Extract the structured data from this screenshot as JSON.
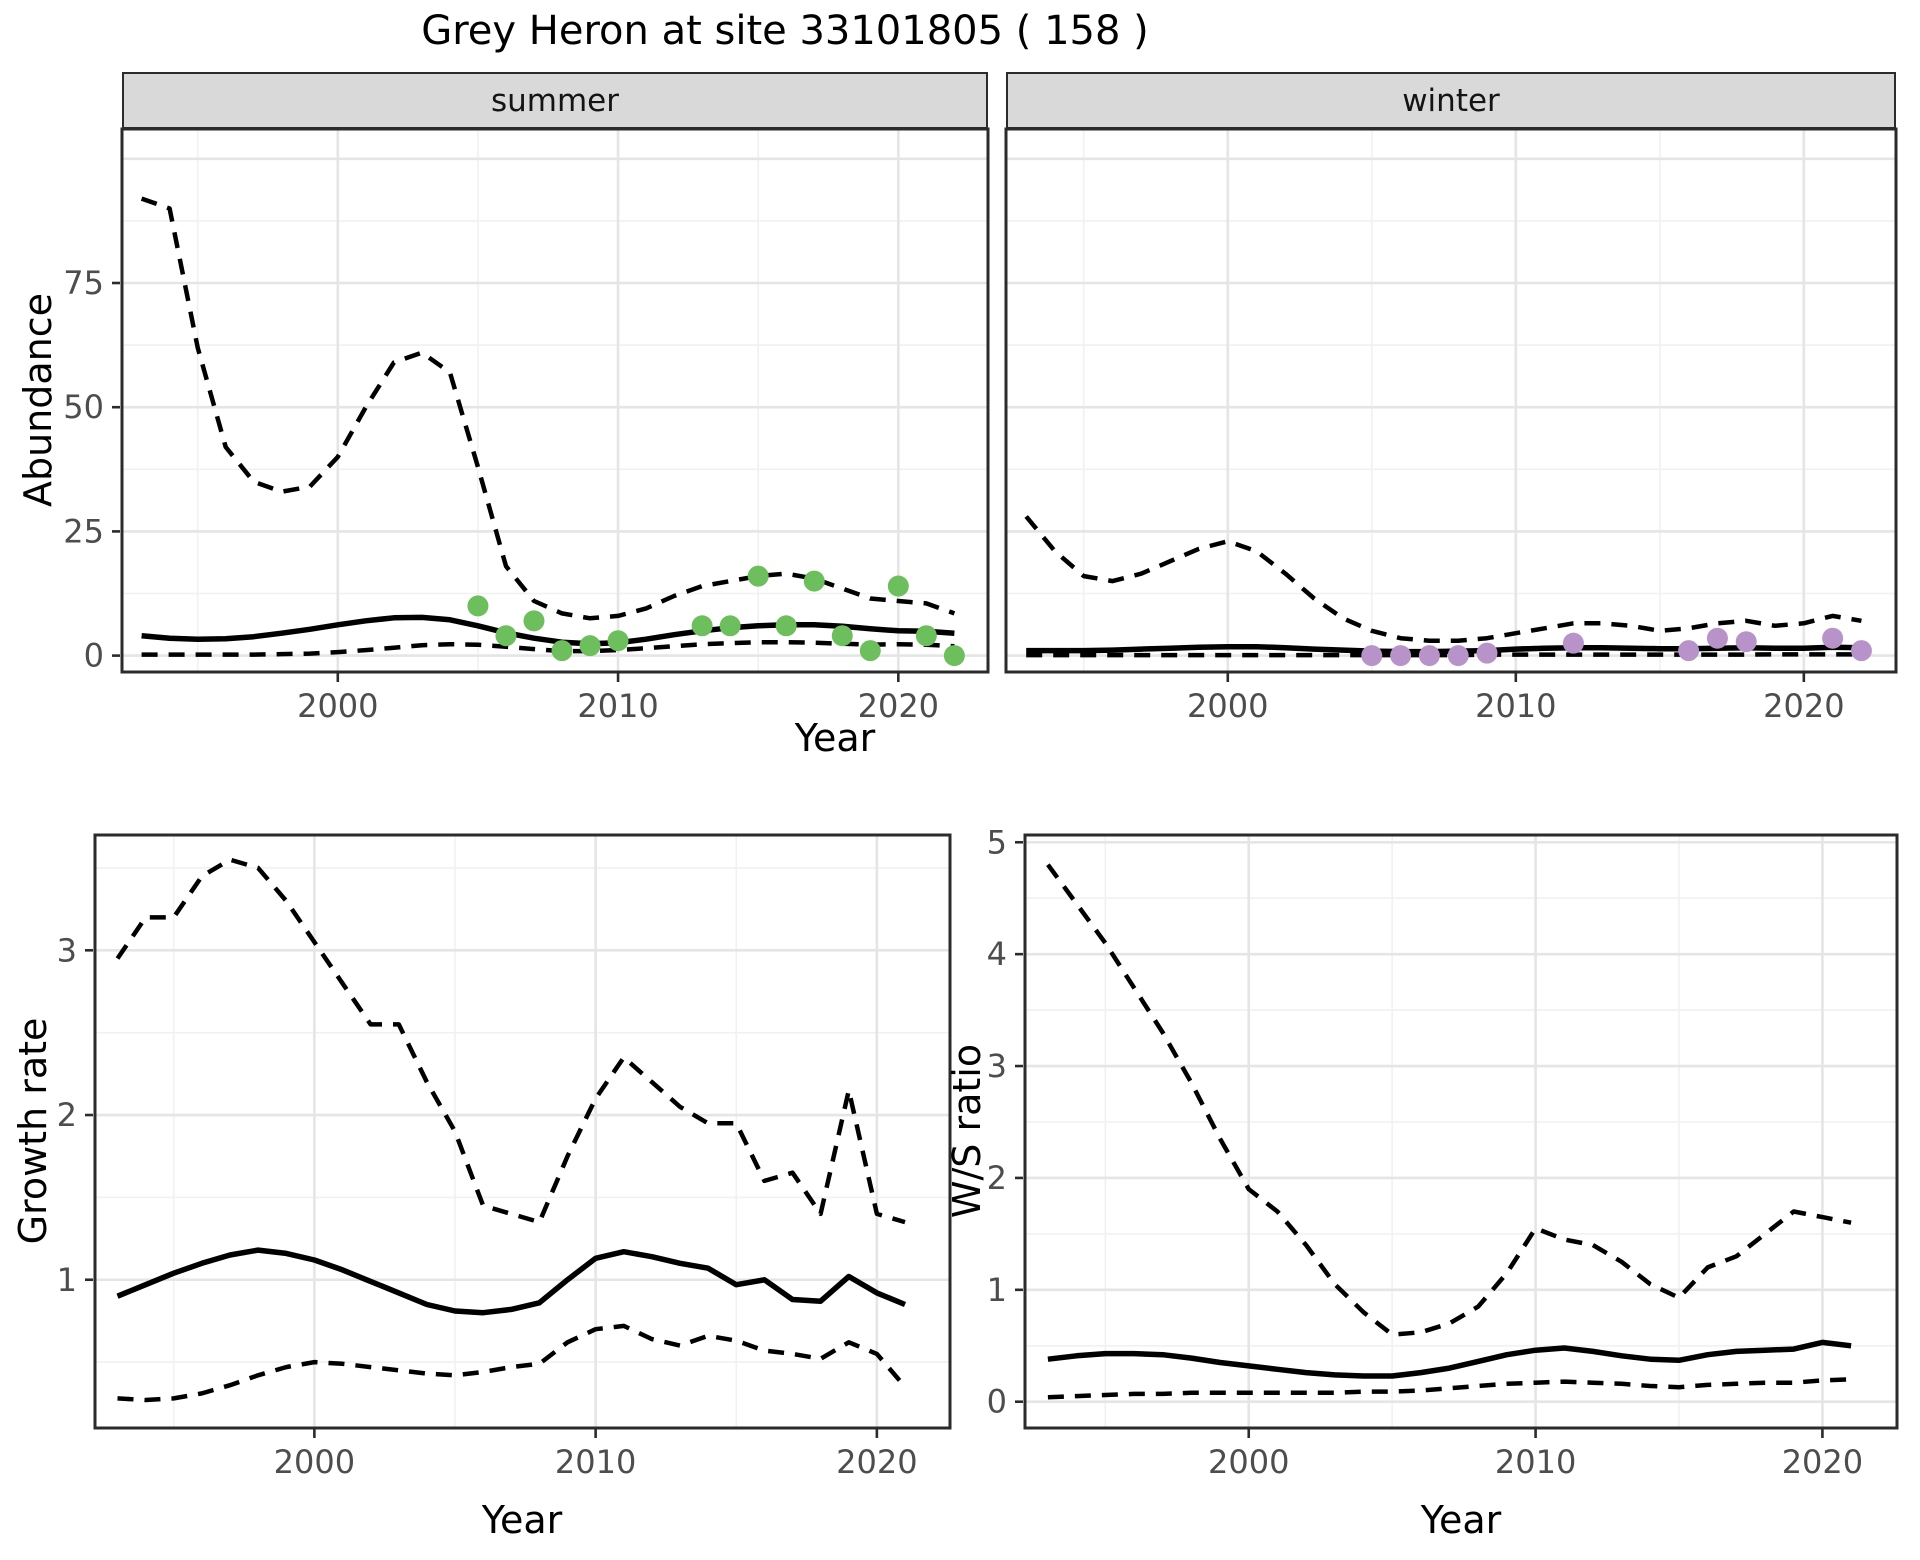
{
  "title": "Grey Heron at site 33101805 ( 158 )",
  "axis": {
    "x_title": "Year",
    "abundance": "Abundance",
    "growth": "Growth rate",
    "ws": "W/S ratio"
  },
  "facets": {
    "summer": "summer",
    "winter": "winter"
  },
  "colors": {
    "summer_point": "#6dbe5c",
    "winter_point": "#b793c9",
    "line": "#000000",
    "strip_bg": "#d9d9d9",
    "panel_border": "#2b2b2b",
    "grid_major": "#e5e5e5",
    "grid_minor": "#f1f1f1",
    "tick_label": "#4d4d4d"
  },
  "chart_data": [
    {
      "id": "summer",
      "type": "line",
      "facet": "summer",
      "xlabel": "Year",
      "ylabel": "Abundance",
      "xlim": [
        1992.3,
        2023.2
      ],
      "ylim": [
        -3.3,
        106
      ],
      "xticks": [
        2000,
        2010,
        2020
      ],
      "xticklabels": [
        "2000",
        "2010",
        "2020"
      ],
      "xticks_minor": [
        1995,
        2005,
        2015
      ],
      "yticks": [
        0,
        25,
        50,
        75
      ],
      "yticklabels": [
        "0",
        "25",
        "50",
        "75"
      ],
      "yticks_grid": [
        0,
        25,
        50,
        75,
        100
      ],
      "yticks_minor": [
        12.5,
        37.5,
        62.5,
        87.5
      ],
      "years": [
        1993,
        1994,
        1995,
        1996,
        1997,
        1998,
        1999,
        2000,
        2001,
        2002,
        2003,
        2004,
        2005,
        2006,
        2007,
        2008,
        2009,
        2010,
        2011,
        2012,
        2013,
        2014,
        2015,
        2016,
        2017,
        2018,
        2019,
        2020,
        2021,
        2022
      ],
      "series": [
        {
          "name": "upper_95ci",
          "style": "dashed",
          "y": [
            92,
            90,
            62,
            42,
            35,
            33,
            34,
            40,
            50,
            59,
            61,
            57,
            38,
            18,
            11,
            8.5,
            7.5,
            8,
            9.5,
            12,
            14,
            15,
            16,
            16.5,
            15.5,
            13.5,
            11.5,
            11,
            10.5,
            8.5
          ]
        },
        {
          "name": "mean",
          "style": "solid",
          "y": [
            4,
            3.5,
            3.3,
            3.4,
            3.8,
            4.5,
            5.3,
            6.2,
            7,
            7.6,
            7.7,
            7.2,
            6,
            4.6,
            3.5,
            2.7,
            2.4,
            2.6,
            3.3,
            4.2,
            5,
            5.6,
            6,
            6.2,
            6.2,
            5.9,
            5.4,
            5,
            4.9,
            4.5
          ]
        },
        {
          "name": "lower_95ci",
          "style": "dashed",
          "y": [
            0.2,
            0.2,
            0.2,
            0.2,
            0.2,
            0.3,
            0.4,
            0.7,
            1.1,
            1.6,
            2.1,
            2.3,
            2.2,
            1.8,
            1.3,
            0.9,
            0.9,
            1.1,
            1.5,
            1.9,
            2.3,
            2.5,
            2.7,
            2.7,
            2.6,
            2.4,
            2.2,
            2.3,
            2.2,
            1.9
          ]
        },
        {
          "name": "observed_counts",
          "style": "points",
          "color": "#6dbe5c",
          "x": [
            2005,
            2006,
            2007,
            2008,
            2009,
            2010,
            2013,
            2014,
            2015,
            2016,
            2017,
            2018,
            2019,
            2020,
            2021,
            2022
          ],
          "y": [
            10,
            4,
            7,
            1,
            2,
            3,
            6,
            6,
            16,
            6,
            15,
            4,
            1,
            14,
            4,
            0
          ]
        }
      ]
    },
    {
      "id": "winter",
      "type": "line",
      "facet": "winter",
      "xlabel": "Year",
      "ylabel": "Abundance",
      "xlim": [
        1992.3,
        2023.2
      ],
      "ylim": [
        -3.3,
        106
      ],
      "xticks": [
        2000,
        2010,
        2020
      ],
      "xticklabels": [
        "2000",
        "2010",
        "2020"
      ],
      "xticks_minor": [
        1995,
        2005,
        2015
      ],
      "yticks": [
        0,
        25,
        50,
        75
      ],
      "yticklabels": [],
      "yticks_grid": [
        0,
        25,
        50,
        75,
        100
      ],
      "yticks_minor": [
        12.5,
        37.5,
        62.5,
        87.5
      ],
      "years": [
        1993,
        1994,
        1995,
        1996,
        1997,
        1998,
        1999,
        2000,
        2001,
        2002,
        2003,
        2004,
        2005,
        2006,
        2007,
        2008,
        2009,
        2010,
        2011,
        2012,
        2013,
        2014,
        2015,
        2016,
        2017,
        2018,
        2019,
        2020,
        2021,
        2022
      ],
      "series": [
        {
          "name": "upper_95ci",
          "style": "dashed",
          "y": [
            28,
            21,
            16,
            15,
            16.5,
            19,
            21.5,
            23,
            21,
            16.5,
            11.5,
            7.5,
            5,
            3.5,
            3,
            3,
            3.5,
            4.5,
            5.5,
            6.5,
            6.5,
            6,
            5,
            5.5,
            6.5,
            7,
            6,
            6.5,
            8,
            7
          ]
        },
        {
          "name": "mean",
          "style": "solid",
          "y": [
            1,
            1,
            1,
            1.1,
            1.3,
            1.5,
            1.7,
            1.8,
            1.8,
            1.6,
            1.3,
            1.1,
            0.9,
            0.8,
            0.8,
            0.9,
            1,
            1.3,
            1.5,
            1.6,
            1.6,
            1.5,
            1.4,
            1.4,
            1.5,
            1.6,
            1.5,
            1.5,
            1.7,
            1.6
          ]
        },
        {
          "name": "lower_95ci",
          "style": "dashed",
          "y": [
            0.1,
            0.1,
            0.1,
            0.1,
            0.1,
            0.1,
            0.1,
            0.1,
            0.1,
            0.1,
            0.1,
            0.1,
            0.1,
            0.1,
            0.1,
            0.1,
            0.2,
            0.2,
            0.2,
            0.2,
            0.2,
            0.2,
            0.2,
            0.2,
            0.2,
            0.2,
            0.25,
            0.25,
            0.25,
            0.25
          ]
        },
        {
          "name": "observed_counts",
          "style": "points",
          "color": "#b793c9",
          "x": [
            2005,
            2006,
            2007,
            2008,
            2009,
            2012,
            2016,
            2017,
            2018,
            2021,
            2022
          ],
          "y": [
            0,
            0,
            0,
            0,
            0.5,
            2.5,
            1,
            3.5,
            2.8,
            3.5,
            1
          ]
        }
      ]
    },
    {
      "id": "growth",
      "type": "line",
      "xlabel": "Year",
      "ylabel": "Growth rate",
      "xlim": [
        1992.2,
        2022.6
      ],
      "ylim": [
        0.1,
        3.7
      ],
      "xticks": [
        2000,
        2010,
        2020
      ],
      "xticklabels": [
        "2000",
        "2010",
        "2020"
      ],
      "xticks_minor": [
        1995,
        2005,
        2015
      ],
      "yticks": [
        1,
        2,
        3
      ],
      "yticklabels": [
        "1",
        "2",
        "3"
      ],
      "yticks_grid": [
        1,
        2,
        3
      ],
      "yticks_minor": [
        0.5,
        1.5,
        2.5,
        3.5
      ],
      "years": [
        1993,
        1994,
        1995,
        1996,
        1997,
        1998,
        1999,
        2000,
        2001,
        2002,
        2003,
        2004,
        2005,
        2006,
        2007,
        2008,
        2009,
        2010,
        2011,
        2012,
        2013,
        2014,
        2015,
        2016,
        2017,
        2018,
        2019,
        2020,
        2021
      ],
      "series": [
        {
          "name": "upper_95ci",
          "style": "dashed",
          "y": [
            2.95,
            3.2,
            3.2,
            3.45,
            3.55,
            3.5,
            3.3,
            3.05,
            2.8,
            2.55,
            2.55,
            2.2,
            1.9,
            1.45,
            1.4,
            1.35,
            1.75,
            2.1,
            2.35,
            2.2,
            2.05,
            1.95,
            1.95,
            1.6,
            1.65,
            1.4,
            2.15,
            1.4,
            1.35
          ]
        },
        {
          "name": "mean",
          "style": "solid",
          "y": [
            0.9,
            0.97,
            1.04,
            1.1,
            1.15,
            1.18,
            1.16,
            1.12,
            1.06,
            0.99,
            0.92,
            0.85,
            0.81,
            0.8,
            0.82,
            0.86,
            1.0,
            1.13,
            1.17,
            1.14,
            1.1,
            1.07,
            0.97,
            1.0,
            0.88,
            0.87,
            1.02,
            0.92,
            0.85
          ]
        },
        {
          "name": "lower_95ci",
          "style": "dashed",
          "y": [
            0.28,
            0.27,
            0.28,
            0.31,
            0.36,
            0.42,
            0.47,
            0.5,
            0.49,
            0.47,
            0.45,
            0.43,
            0.42,
            0.44,
            0.47,
            0.49,
            0.62,
            0.7,
            0.72,
            0.64,
            0.6,
            0.66,
            0.63,
            0.57,
            0.55,
            0.52,
            0.62,
            0.55,
            0.35
          ]
        }
      ]
    },
    {
      "id": "ws",
      "type": "line",
      "xlabel": "Year",
      "ylabel": "W/S ratio",
      "xlim": [
        1992.2,
        2022.6
      ],
      "ylim": [
        -0.235,
        5.065
      ],
      "xticks": [
        2000,
        2010,
        2020
      ],
      "xticklabels": [
        "2000",
        "2010",
        "2020"
      ],
      "xticks_minor": [
        1995,
        2005,
        2015
      ],
      "yticks": [
        0,
        1,
        2,
        3,
        4,
        5
      ],
      "yticklabels": [
        "0",
        "1",
        "2",
        "3",
        "4",
        "5"
      ],
      "yticks_grid": [
        0,
        1,
        2,
        3,
        4,
        5
      ],
      "yticks_minor": [
        0.5,
        1.5,
        2.5,
        3.5,
        4.5
      ],
      "years": [
        1993,
        1994,
        1995,
        1996,
        1997,
        1998,
        1999,
        2000,
        2001,
        2002,
        2003,
        2004,
        2005,
        2006,
        2007,
        2008,
        2009,
        2010,
        2011,
        2012,
        2013,
        2014,
        2015,
        2016,
        2017,
        2018,
        2019,
        2020,
        2021
      ],
      "series": [
        {
          "name": "upper_95ci",
          "style": "dashed",
          "y": [
            4.8,
            4.45,
            4.1,
            3.7,
            3.3,
            2.85,
            2.35,
            1.9,
            1.7,
            1.4,
            1.05,
            0.8,
            0.6,
            0.62,
            0.7,
            0.85,
            1.15,
            1.55,
            1.45,
            1.4,
            1.25,
            1.05,
            0.93,
            1.2,
            1.3,
            1.5,
            1.7,
            1.65,
            1.6
          ]
        },
        {
          "name": "mean",
          "style": "solid",
          "y": [
            0.38,
            0.41,
            0.43,
            0.43,
            0.42,
            0.39,
            0.35,
            0.32,
            0.29,
            0.26,
            0.24,
            0.23,
            0.23,
            0.26,
            0.3,
            0.36,
            0.42,
            0.46,
            0.48,
            0.45,
            0.41,
            0.38,
            0.37,
            0.42,
            0.45,
            0.46,
            0.47,
            0.53,
            0.5
          ]
        },
        {
          "name": "lower_95ci",
          "style": "dashed",
          "y": [
            0.04,
            0.05,
            0.06,
            0.07,
            0.07,
            0.08,
            0.08,
            0.08,
            0.08,
            0.08,
            0.08,
            0.09,
            0.09,
            0.1,
            0.12,
            0.14,
            0.16,
            0.17,
            0.18,
            0.17,
            0.16,
            0.14,
            0.13,
            0.15,
            0.16,
            0.17,
            0.17,
            0.19,
            0.2
          ]
        }
      ]
    }
  ]
}
